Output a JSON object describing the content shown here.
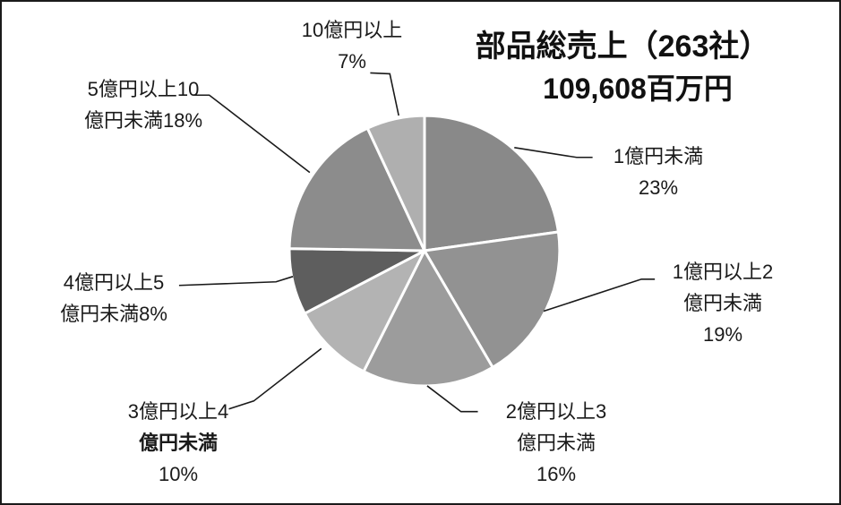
{
  "chart_data": {
    "type": "pie",
    "title_lines": [
      "部品総売上（263社）",
      "109,608百万円"
    ],
    "title": "部品総売上（263社） 109,608百万円",
    "legend_position": "none",
    "labels_on_chart": true,
    "start_angle_deg": 0,
    "direction": "clockwise",
    "slices": [
      {
        "label": "1億円未満",
        "pct": 23,
        "color": "#898989",
        "lines": [
          "1億円未満",
          "23%"
        ]
      },
      {
        "label": "1億円以上2億円未満",
        "pct": 19,
        "color": "#929292",
        "lines": [
          "1億円以上2",
          "億円未満",
          "19%"
        ]
      },
      {
        "label": "2億円以上3億円未満",
        "pct": 16,
        "color": "#9C9C9C",
        "lines": [
          "2億円以上3",
          "億円未満",
          "16%"
        ]
      },
      {
        "label": "3億円以上4億円未満",
        "pct": 10,
        "color": "#B3B3B3",
        "lines": [
          "3億円以上4",
          "億円未満",
          "10%"
        ]
      },
      {
        "label": "4億円以上5億円未満",
        "pct": 8,
        "color": "#5E5E5E",
        "lines": [
          "4億円以上5",
          "億円未満8%"
        ]
      },
      {
        "label": "5億円以上10億円未満",
        "pct": 18,
        "color": "#8C8C8C",
        "lines": [
          "5億円以上10",
          "億円未満18%"
        ]
      },
      {
        "label": "10億円以上",
        "pct": 7,
        "color": "#AFAFAF",
        "lines": [
          "10億円以上",
          "7%"
        ]
      }
    ]
  }
}
